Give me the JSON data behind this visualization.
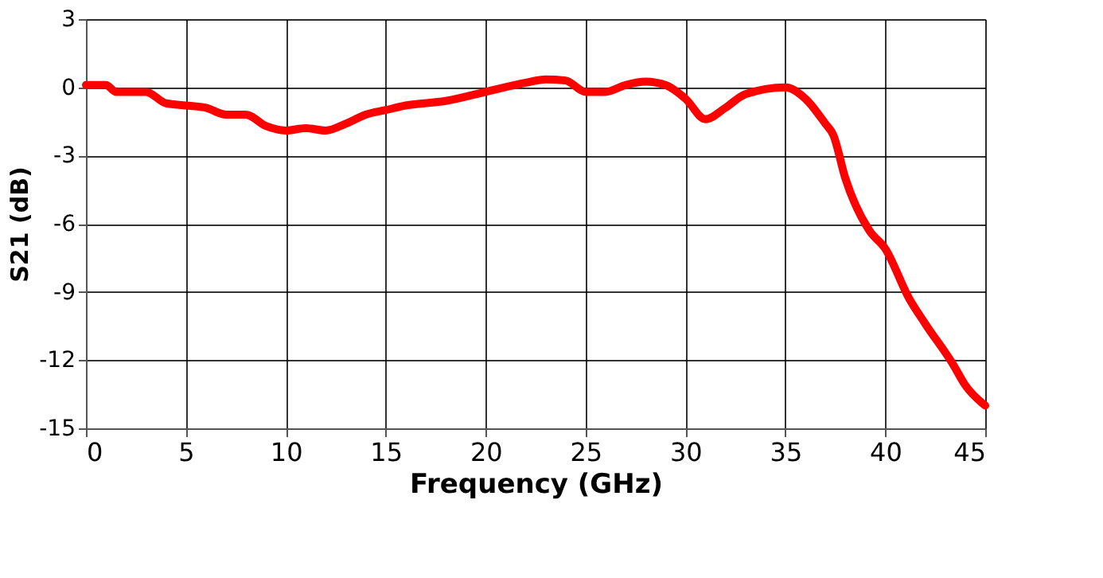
{
  "chart_data": {
    "type": "line",
    "xlabel": "Frequency (GHz)",
    "ylabel": "S21 (dB)",
    "x": [
      0,
      1,
      1.5,
      3,
      4,
      5,
      6,
      7,
      8,
      9,
      10,
      11,
      12,
      13,
      14,
      15,
      16,
      18,
      20,
      22,
      23,
      24,
      25,
      26,
      27,
      28,
      29,
      30,
      31,
      32,
      33,
      35,
      36,
      37,
      37.4,
      38,
      39.2,
      40,
      41.2,
      42,
      43.4,
      44,
      45
    ],
    "series": [
      {
        "color": "#ff0000",
        "values": [
          0.1,
          0.1,
          -0.2,
          -0.2,
          -0.7,
          -0.8,
          -0.9,
          -1.2,
          -1.2,
          -1.7,
          -1.9,
          -1.8,
          -1.9,
          -1.6,
          -1.2,
          -1.0,
          -0.8,
          -0.6,
          -0.2,
          0.2,
          0.35,
          0.3,
          -0.2,
          -0.2,
          0.1,
          0.25,
          0.1,
          -0.5,
          -1.4,
          -0.9,
          -0.3,
          0.0,
          -0.5,
          -1.6,
          -2.1,
          -4.0,
          -6.3,
          -7.1,
          -9.3,
          -10.4,
          -12.2,
          -13.1,
          -14.0
        ]
      }
    ],
    "xlim": [
      0,
      45
    ],
    "xticks": [
      0,
      5,
      10,
      15,
      20,
      25,
      30,
      35,
      40,
      45
    ],
    "ylim": [
      -15,
      3
    ],
    "yticks": [
      -15,
      -12,
      -9,
      -6,
      -3,
      0,
      3
    ],
    "grid": true,
    "marker": "none",
    "line_style": "solid"
  }
}
